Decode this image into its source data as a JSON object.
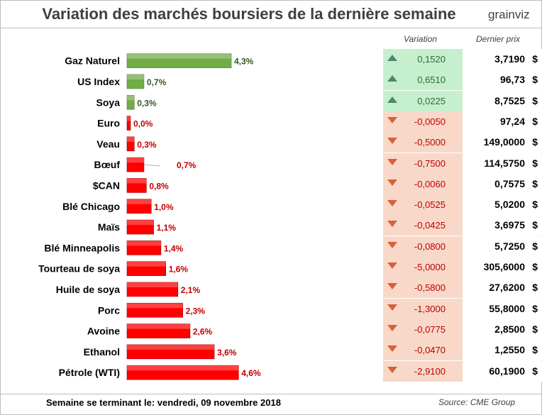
{
  "title": "Variation des marchés boursiers de la dernière semaine",
  "logo": {
    "text_a": "grain",
    "text_b": "viz"
  },
  "columns": {
    "variation": "Variation",
    "price": "Dernier prix"
  },
  "currency": "$",
  "footer": {
    "week": "Semaine se terminant le:  vendredi, 09 novembre 2018",
    "source": "Source: CME Group"
  },
  "colors": {
    "positive_bar": "#70ad47",
    "negative_bar": "#ff0000",
    "positive_label": "#375623",
    "negative_label": "#c00000"
  },
  "chart_data": {
    "type": "bar",
    "orientation": "horizontal",
    "categories": [
      "Gaz Naturel",
      "US Index",
      "Soya",
      "Euro",
      "Veau",
      "Bœuf",
      "$CAN",
      "Blé Chicago",
      "Maïs",
      "Blé Minneapolis",
      "Tourteau de soya",
      "Huile de soya",
      "Porc",
      "Avoine",
      "Ethanol",
      "Pétrole (WTI)"
    ],
    "values": [
      4.3,
      0.7,
      0.3,
      0.0,
      0.3,
      0.7,
      0.8,
      1.0,
      1.1,
      1.4,
      1.6,
      2.1,
      2.3,
      2.6,
      3.6,
      4.6
    ],
    "labels": [
      "4,3%",
      "0,7%",
      "0,3%",
      "0,0%",
      "0,3%",
      "0,7%",
      "0,8%",
      "1,0%",
      "1,1%",
      "1,4%",
      "1,6%",
      "2,1%",
      "2,3%",
      "2,6%",
      "3,6%",
      "4,6%"
    ],
    "direction": [
      "up",
      "up",
      "up",
      "down",
      "down",
      "down",
      "down",
      "down",
      "down",
      "down",
      "down",
      "down",
      "down",
      "down",
      "down",
      "down"
    ]
  },
  "table": [
    {
      "variation": "0,1520",
      "price": "3,7190",
      "dir": "up"
    },
    {
      "variation": "0,6510",
      "price": "96,73",
      "dir": "up"
    },
    {
      "variation": "0,0225",
      "price": "8,7525",
      "dir": "up"
    },
    {
      "variation": "-0,0050",
      "price": "97,24",
      "dir": "down"
    },
    {
      "variation": "-0,5000",
      "price": "149,0000",
      "dir": "down"
    },
    {
      "variation": "-0,7500",
      "price": "114,5750",
      "dir": "down"
    },
    {
      "variation": "-0,0060",
      "price": "0,7575",
      "dir": "down"
    },
    {
      "variation": "-0,0525",
      "price": "5,0200",
      "dir": "down"
    },
    {
      "variation": "-0,0425",
      "price": "3,6975",
      "dir": "down"
    },
    {
      "variation": "-0,0800",
      "price": "5,7250",
      "dir": "down"
    },
    {
      "variation": "-5,0000",
      "price": "305,6000",
      "dir": "down"
    },
    {
      "variation": "-0,5800",
      "price": "27,6200",
      "dir": "down"
    },
    {
      "variation": "-1,3000",
      "price": "55,8000",
      "dir": "down"
    },
    {
      "variation": "-0,0775",
      "price": "2,8500",
      "dir": "down"
    },
    {
      "variation": "-0,0470",
      "price": "1,2550",
      "dir": "down"
    },
    {
      "variation": "-2,9100",
      "price": "60,1900",
      "dir": "down"
    }
  ]
}
